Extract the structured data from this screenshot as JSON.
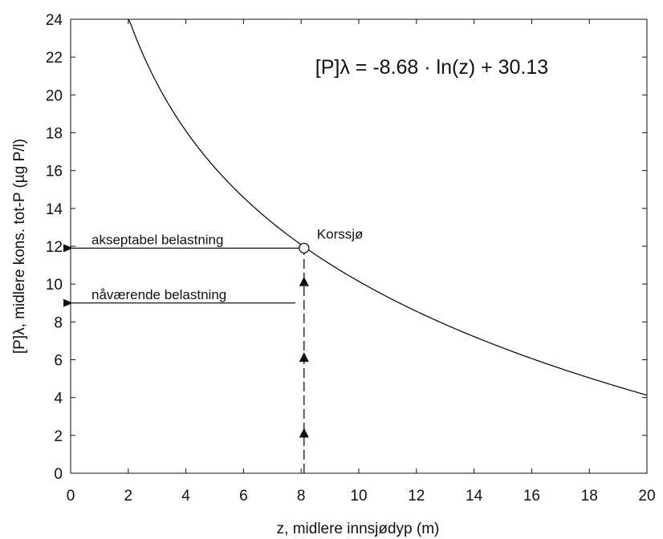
{
  "chart_data": {
    "type": "line",
    "title": "",
    "xlabel": "z, midlere innsjødyp (m)",
    "ylabel": "[P]λ, midlere kons. tot-P  (µg P/l)",
    "xlim": [
      0,
      20
    ],
    "ylim": [
      0,
      24
    ],
    "xticks": [
      0,
      2,
      4,
      6,
      8,
      10,
      12,
      14,
      16,
      18,
      20
    ],
    "yticks": [
      0,
      2,
      4,
      6,
      8,
      10,
      12,
      14,
      16,
      18,
      20,
      22,
      24
    ],
    "grid": false,
    "curve": {
      "formula_label": "[P]λ = -8.68 · ln(z) + 30.13",
      "a": -8.68,
      "b": 30.13,
      "x_start": 2.0,
      "x_end": 20.0
    },
    "point": {
      "label": "Korssjø",
      "x": 8.1,
      "y": 11.9
    },
    "triangles": [
      {
        "x": 8.1,
        "y": 10.1
      },
      {
        "x": 8.1,
        "y": 6.1
      },
      {
        "x": 8.1,
        "y": 2.1
      }
    ],
    "dashed_line": {
      "x": 8.1,
      "y_from": 0,
      "y_to": 11.9
    },
    "arrows": [
      {
        "label": "akseptabel belastning",
        "from_x": 8.1,
        "y": 11.9,
        "to_x": 0
      },
      {
        "label": "nåværende belastning",
        "from_x": 7.8,
        "y": 9.0,
        "to_x": 0
      }
    ],
    "color": "#111111"
  }
}
